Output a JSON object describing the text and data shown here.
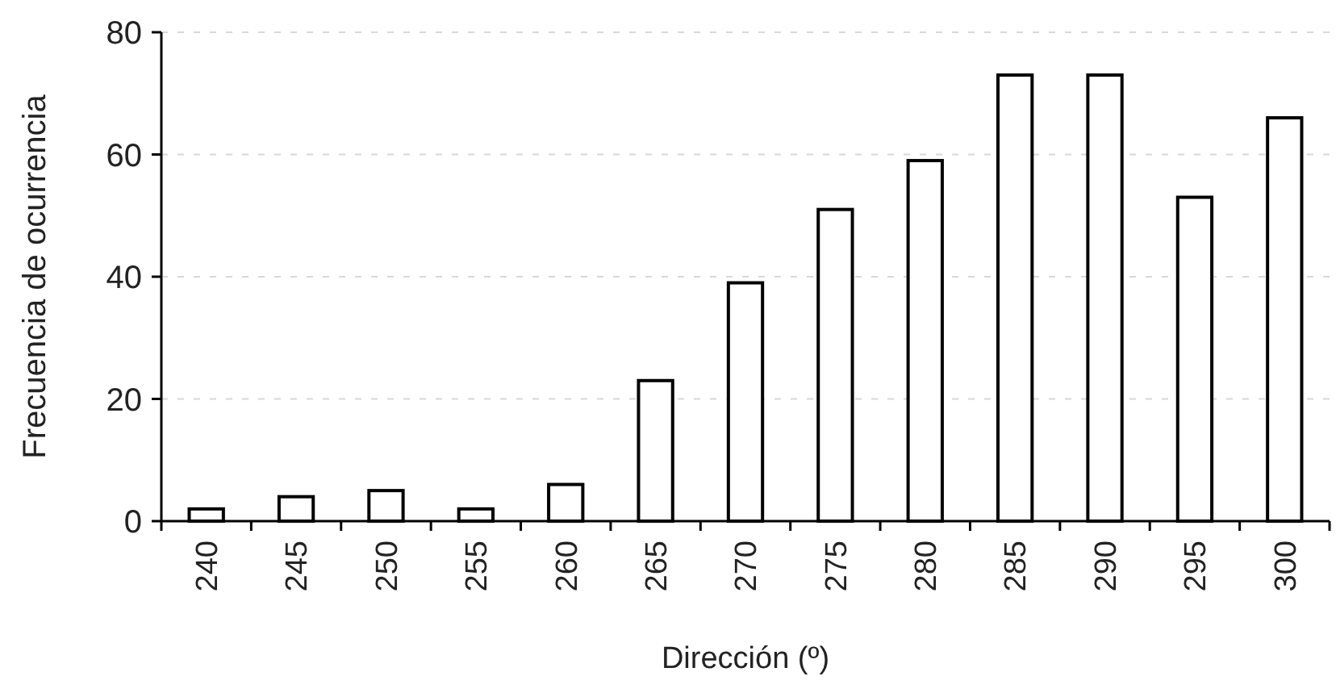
{
  "chart_data": {
    "type": "bar",
    "xlabel": "Dirección (º)",
    "ylabel": "Frecuencia de ocurrencia",
    "categories": [
      "240",
      "245",
      "250",
      "255",
      "260",
      "265",
      "270",
      "275",
      "280",
      "285",
      "290",
      "295",
      "300"
    ],
    "values": [
      2,
      4,
      5,
      2,
      6,
      23,
      39,
      51,
      59,
      73,
      73,
      53,
      66
    ],
    "color": "#ffffff",
    "ylim": [
      0,
      80
    ],
    "yticks": [
      0,
      20,
      40,
      60,
      80
    ],
    "grid": "y"
  }
}
